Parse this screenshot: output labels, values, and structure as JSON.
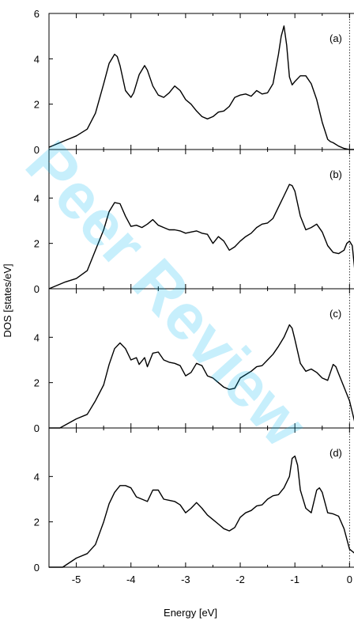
{
  "chart_data": {
    "type": "line",
    "xlabel": "Energy [eV]",
    "ylabel": "DOS [states/eV]",
    "xlim": [
      -5.5,
      0.4
    ],
    "ylim": [
      0,
      6
    ],
    "xticks": [
      "-5",
      "-4",
      "-3",
      "-2",
      "-1",
      "0"
    ],
    "xtick_values": [
      -5,
      -4,
      -3,
      -2,
      -1,
      0
    ],
    "yticks_top": [
      "0",
      "2",
      "4",
      "6"
    ],
    "yticks": [
      "0",
      "2",
      "4"
    ],
    "ytick_values": [
      0,
      2,
      4,
      6
    ],
    "fermi_level": 0,
    "panels": [
      {
        "label": "(a)",
        "x": [
          -5.5,
          -5.2,
          -5.0,
          -4.8,
          -4.65,
          -4.5,
          -4.4,
          -4.3,
          -4.25,
          -4.2,
          -4.1,
          -4.0,
          -3.95,
          -3.85,
          -3.75,
          -3.7,
          -3.6,
          -3.5,
          -3.4,
          -3.3,
          -3.2,
          -3.1,
          -3.0,
          -2.9,
          -2.8,
          -2.7,
          -2.6,
          -2.5,
          -2.4,
          -2.3,
          -2.2,
          -2.1,
          -2.0,
          -1.9,
          -1.8,
          -1.7,
          -1.6,
          -1.5,
          -1.4,
          -1.3,
          -1.25,
          -1.2,
          -1.15,
          -1.1,
          -1.05,
          -1.0,
          -0.9,
          -0.8,
          -0.7,
          -0.6,
          -0.5,
          -0.4,
          -0.35,
          -0.3,
          -0.2,
          -0.1,
          0.0,
          0.2,
          0.4
        ],
        "y": [
          0.1,
          0.4,
          0.6,
          0.9,
          1.6,
          2.9,
          3.8,
          4.2,
          4.1,
          3.7,
          2.6,
          2.3,
          2.5,
          3.3,
          3.7,
          3.5,
          2.8,
          2.4,
          2.3,
          2.5,
          2.8,
          2.6,
          2.2,
          2.0,
          1.7,
          1.45,
          1.35,
          1.45,
          1.65,
          1.7,
          1.9,
          2.3,
          2.4,
          2.45,
          2.35,
          2.6,
          2.45,
          2.5,
          2.9,
          4.2,
          5.0,
          5.45,
          4.6,
          3.2,
          2.85,
          3.0,
          3.25,
          3.25,
          2.9,
          2.2,
          1.2,
          0.45,
          0.35,
          0.3,
          0.15,
          0.05,
          0.0,
          0.0,
          0.0
        ]
      },
      {
        "label": "(b)",
        "x": [
          -5.5,
          -5.2,
          -5.0,
          -4.8,
          -4.65,
          -4.5,
          -4.4,
          -4.3,
          -4.2,
          -4.1,
          -4.0,
          -3.9,
          -3.8,
          -3.7,
          -3.6,
          -3.5,
          -3.4,
          -3.3,
          -3.2,
          -3.1,
          -3.0,
          -2.9,
          -2.8,
          -2.7,
          -2.6,
          -2.5,
          -2.4,
          -2.3,
          -2.2,
          -2.1,
          -2.0,
          -1.9,
          -1.8,
          -1.7,
          -1.6,
          -1.5,
          -1.4,
          -1.3,
          -1.2,
          -1.1,
          -1.05,
          -1.0,
          -0.9,
          -0.8,
          -0.7,
          -0.6,
          -0.5,
          -0.4,
          -0.3,
          -0.2,
          -0.1,
          -0.05,
          0.0,
          0.05,
          0.1,
          0.2,
          0.3,
          0.4
        ],
        "y": [
          0.0,
          0.3,
          0.45,
          0.8,
          1.7,
          2.6,
          3.4,
          3.8,
          3.75,
          3.2,
          2.75,
          2.8,
          2.7,
          2.85,
          3.05,
          2.8,
          2.7,
          2.6,
          2.6,
          2.55,
          2.45,
          2.5,
          2.55,
          2.45,
          2.4,
          2.0,
          2.3,
          2.1,
          1.7,
          1.85,
          2.1,
          2.3,
          2.45,
          2.7,
          2.85,
          2.9,
          3.1,
          3.6,
          4.1,
          4.6,
          4.55,
          4.3,
          3.2,
          2.6,
          2.7,
          2.85,
          2.5,
          1.9,
          1.6,
          1.55,
          1.7,
          2.0,
          2.1,
          1.9,
          0.7,
          0.35,
          0.1,
          0.0
        ]
      },
      {
        "label": "(c)",
        "x": [
          -5.5,
          -5.3,
          -5.0,
          -4.8,
          -4.65,
          -4.5,
          -4.4,
          -4.3,
          -4.2,
          -4.1,
          -4.0,
          -3.9,
          -3.85,
          -3.75,
          -3.7,
          -3.6,
          -3.5,
          -3.4,
          -3.3,
          -3.2,
          -3.1,
          -3.0,
          -2.9,
          -2.8,
          -2.7,
          -2.6,
          -2.5,
          -2.4,
          -2.3,
          -2.2,
          -2.1,
          -2.0,
          -1.9,
          -1.8,
          -1.7,
          -1.6,
          -1.5,
          -1.4,
          -1.3,
          -1.2,
          -1.1,
          -1.05,
          -1.0,
          -0.9,
          -0.8,
          -0.7,
          -0.6,
          -0.5,
          -0.4,
          -0.3,
          -0.25,
          -0.2,
          -0.1,
          0.0,
          0.1,
          0.2,
          0.3,
          0.4
        ],
        "y": [
          0.0,
          0.0,
          0.4,
          0.6,
          1.2,
          1.9,
          2.8,
          3.5,
          3.75,
          3.5,
          3.0,
          3.1,
          2.8,
          3.1,
          2.7,
          3.3,
          3.35,
          3.0,
          2.9,
          2.85,
          2.75,
          2.3,
          2.45,
          2.85,
          2.75,
          2.3,
          2.2,
          2.0,
          1.8,
          1.7,
          1.75,
          2.2,
          2.35,
          2.5,
          2.7,
          2.75,
          3.0,
          3.25,
          3.6,
          4.0,
          4.55,
          4.4,
          3.9,
          2.85,
          2.5,
          2.6,
          2.45,
          2.2,
          2.1,
          2.8,
          2.7,
          2.4,
          1.8,
          1.2,
          0.2,
          0.0,
          0.0,
          0.0
        ]
      },
      {
        "label": "(d)",
        "x": [
          -5.5,
          -5.25,
          -5.0,
          -4.8,
          -4.65,
          -4.5,
          -4.4,
          -4.3,
          -4.2,
          -4.1,
          -4.0,
          -3.9,
          -3.8,
          -3.7,
          -3.6,
          -3.5,
          -3.4,
          -3.3,
          -3.2,
          -3.1,
          -3.0,
          -2.9,
          -2.8,
          -2.7,
          -2.6,
          -2.5,
          -2.4,
          -2.3,
          -2.2,
          -2.1,
          -2.0,
          -1.9,
          -1.8,
          -1.7,
          -1.6,
          -1.5,
          -1.4,
          -1.3,
          -1.2,
          -1.1,
          -1.05,
          -1.0,
          -0.95,
          -0.9,
          -0.8,
          -0.7,
          -0.6,
          -0.55,
          -0.5,
          -0.4,
          -0.3,
          -0.2,
          -0.1,
          0.0,
          0.1,
          0.2,
          0.3,
          0.4
        ],
        "y": [
          0.0,
          0.0,
          0.4,
          0.6,
          1.0,
          2.0,
          2.8,
          3.3,
          3.6,
          3.6,
          3.5,
          3.1,
          3.0,
          2.9,
          3.4,
          3.4,
          3.0,
          2.95,
          2.9,
          2.75,
          2.4,
          2.6,
          2.85,
          2.6,
          2.3,
          2.1,
          1.9,
          1.7,
          1.6,
          1.75,
          2.2,
          2.4,
          2.5,
          2.7,
          2.75,
          3.0,
          3.15,
          3.2,
          3.5,
          4.0,
          4.8,
          4.9,
          4.5,
          3.4,
          2.6,
          2.4,
          3.4,
          3.5,
          3.3,
          2.4,
          2.35,
          2.25,
          1.7,
          0.8,
          0.6,
          0.3,
          0.0,
          0.0
        ]
      }
    ]
  },
  "watermark": {
    "text": "Peer Review",
    "color": "#00b8f0"
  }
}
